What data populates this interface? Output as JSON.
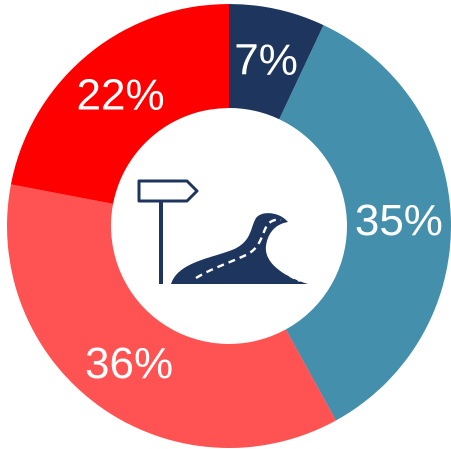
{
  "chart_data": {
    "type": "pie",
    "style": "donut",
    "slices": [
      {
        "value": 7,
        "label": "7%",
        "color": "#1e365e"
      },
      {
        "value": 35,
        "label": "35%",
        "color": "#438fac"
      },
      {
        "value": 36,
        "label": "36%",
        "color": "#ff5353"
      },
      {
        "value": 22,
        "label": "22%",
        "color": "#ff0000"
      }
    ],
    "start": "top",
    "direction": "clockwise",
    "center_icon": "road-signpost-icon",
    "icon_color": "#1e365e"
  }
}
